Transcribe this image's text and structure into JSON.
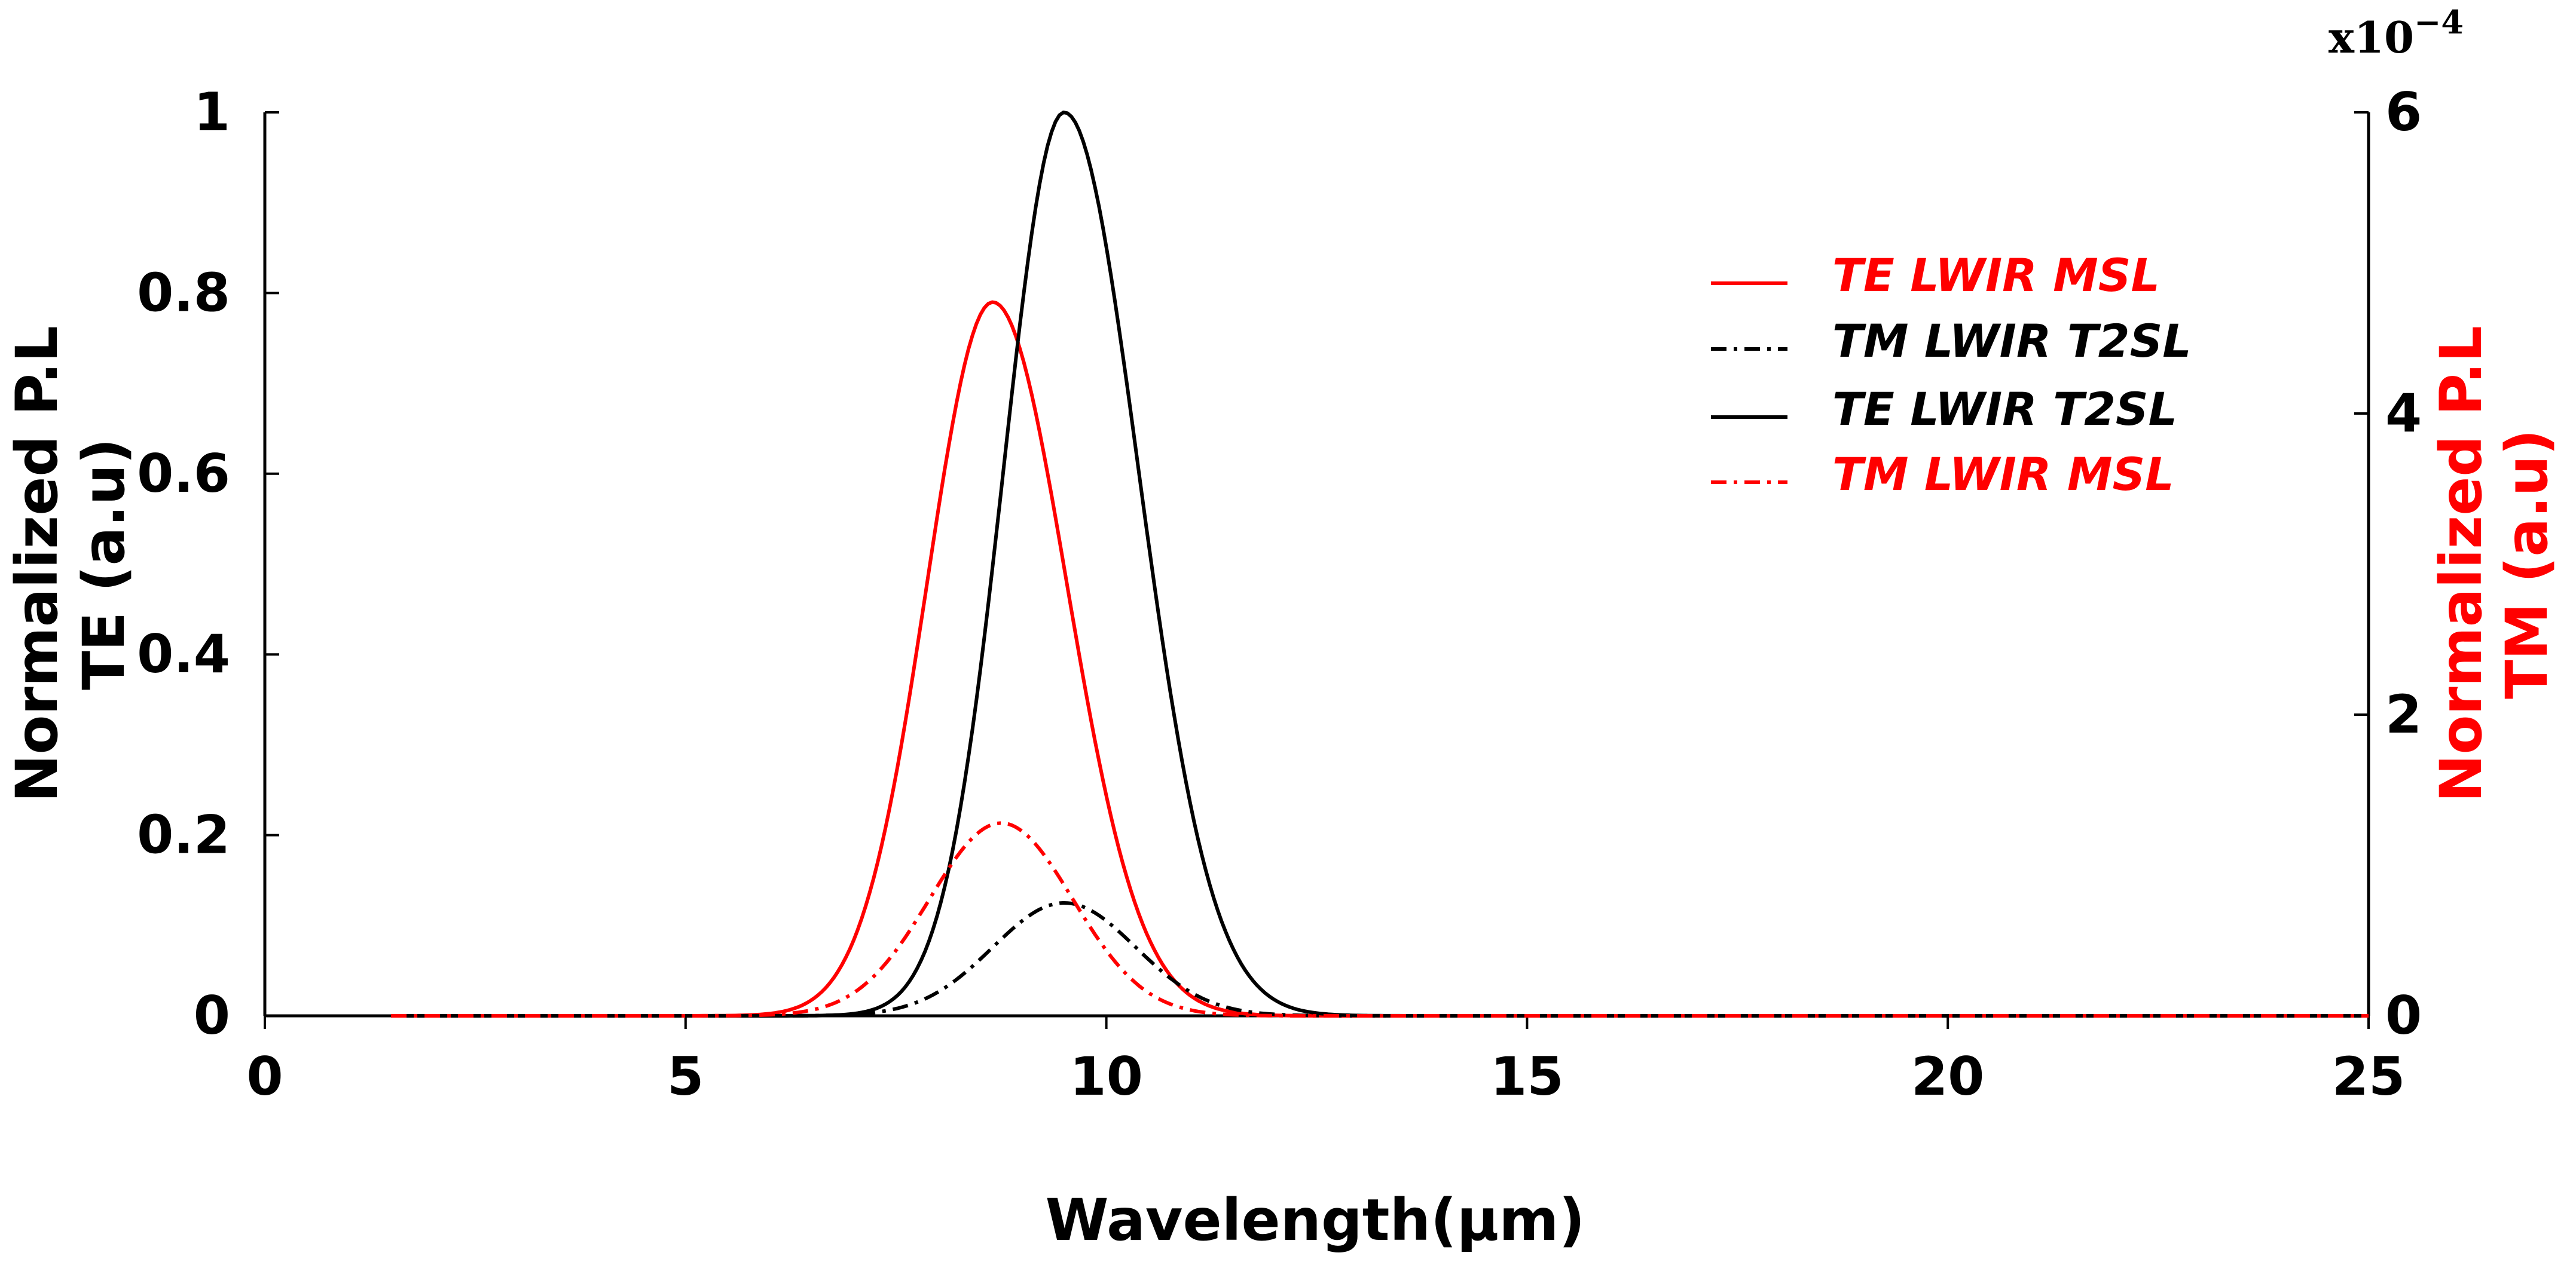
{
  "chart_data": {
    "type": "line",
    "xlabel": "Wavelength(μm)",
    "ylabel_left": [
      "Normalized P.L",
      "TE (a.u)"
    ],
    "ylabel_right": [
      "Normalized P.L",
      "TM (a.u)"
    ],
    "exponent_label": "x10",
    "exponent_power": "−4",
    "xlim": [
      0,
      25
    ],
    "ylim_left": [
      0,
      1
    ],
    "ylim_right": [
      0,
      6
    ],
    "x_ticks": [
      "0",
      "5",
      "10",
      "15",
      "20",
      "25"
    ],
    "y_ticks_left": [
      "0",
      "0.2",
      "0.4",
      "0.6",
      "0.8",
      "1"
    ],
    "y_ticks_right": [
      "0",
      "2",
      "4",
      "6"
    ],
    "x_range": [
      1.5,
      25
    ],
    "colors": {
      "red": "#ff0000",
      "black": "#000000"
    },
    "series": [
      {
        "name": "TE LWIR MSL",
        "axis": "left",
        "color": "#ff0000",
        "dash": "solid",
        "peak_x": 8.65,
        "peak_y": 0.79,
        "sigma_left": 0.78,
        "sigma_right": 0.88
      },
      {
        "name": "TM LWIR T2SL",
        "axis": "right",
        "color": "#000000",
        "dash": "dashdot",
        "peak_x": 9.5,
        "peak_y": 0.75,
        "sigma_left": 0.85,
        "sigma_right": 0.85
      },
      {
        "name": "TE LWIR T2SL",
        "axis": "left",
        "color": "#000000",
        "dash": "solid",
        "peak_x": 9.5,
        "peak_y": 1.0,
        "sigma_left": 0.72,
        "sigma_right": 0.88
      },
      {
        "name": "TM LWIR MSL",
        "axis": "right",
        "color": "#ff0000",
        "dash": "dashdot",
        "peak_x": 8.75,
        "peak_y": 1.28,
        "sigma_left": 0.85,
        "sigma_right": 0.85
      }
    ],
    "legend_position": "top-right"
  }
}
